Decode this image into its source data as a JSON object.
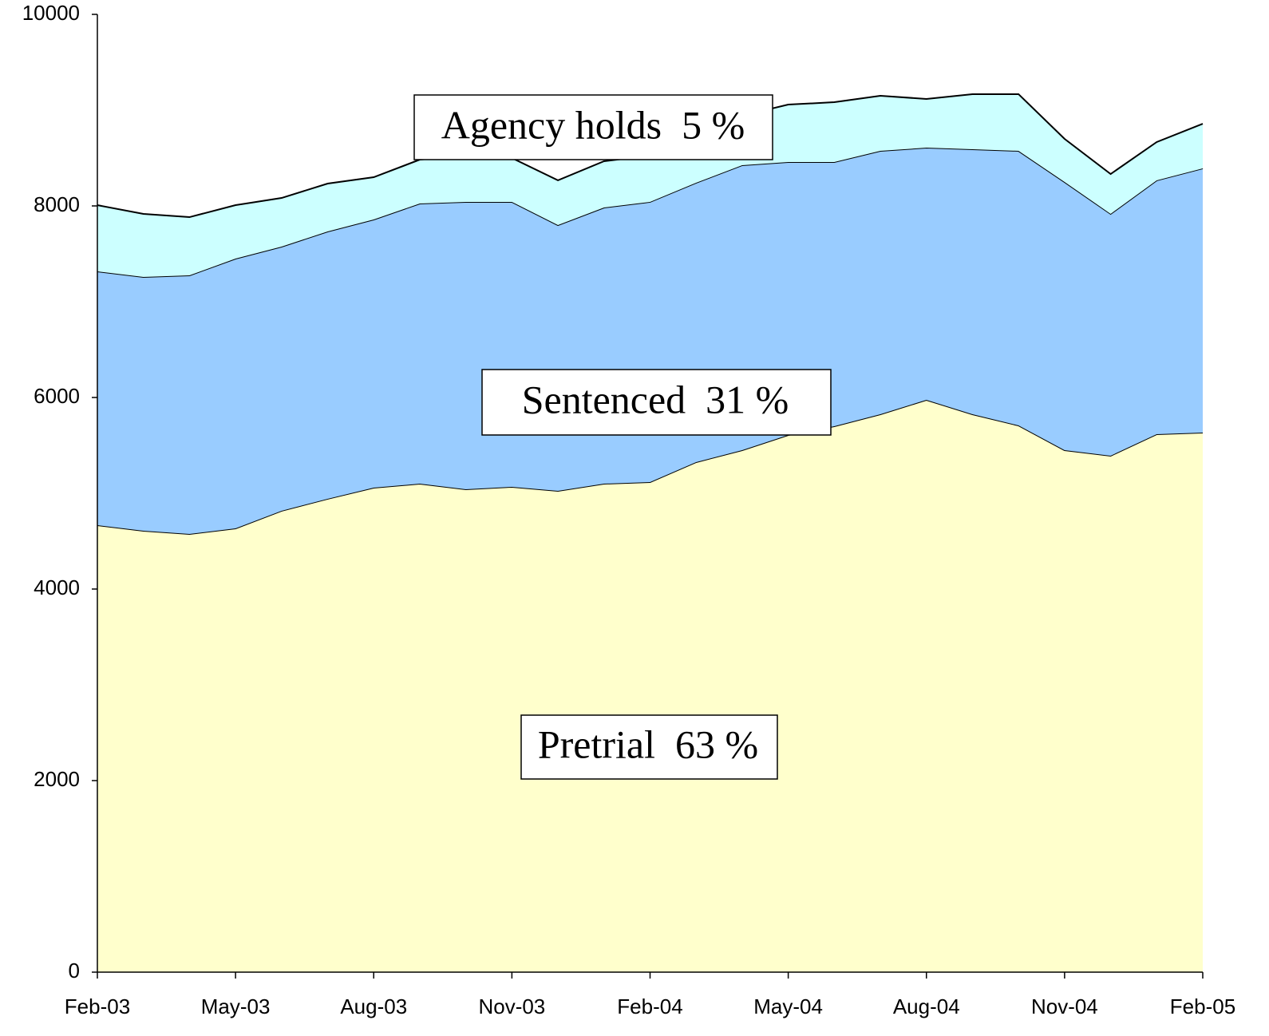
{
  "chart_data": {
    "type": "stacked_area",
    "categories": [
      "Feb-03",
      null,
      null,
      "May-03",
      null,
      null,
      "Aug-03",
      null,
      null,
      "Nov-03",
      null,
      null,
      "Feb-04",
      null,
      null,
      "May-04",
      null,
      null,
      "Aug-04",
      null,
      null,
      "Nov-04",
      null,
      null,
      "Feb-05"
    ],
    "series": [
      {
        "color": "#ffffcc",
        "values": [
          4667,
          4608,
          4575,
          4633,
          4817,
          4942,
          5058,
          5100,
          5042,
          5067,
          5025,
          5100,
          5117,
          5325,
          5450,
          5608,
          5700,
          5825,
          5975,
          5825,
          5708,
          5450,
          5392,
          5617,
          5633
        ]
      },
      {
        "color": "#99ccff",
        "values": [
          2650,
          2650,
          2700,
          2817,
          2758,
          2791,
          2800,
          2925,
          3000,
          2975,
          2775,
          2883,
          2925,
          2917,
          2975,
          2850,
          2758,
          2750,
          2633,
          2767,
          2867,
          2800,
          2525,
          2650,
          2759
        ]
      },
      {
        "color": "#ccffff",
        "values": [
          691,
          659,
          608,
          558,
          508,
          500,
          442,
          458,
          483,
          458,
          467,
          484,
          483,
          408,
          517,
          600,
          625,
          575,
          509,
          575,
          592,
          450,
          416,
          400,
          466
        ]
      }
    ],
    "annotations": [
      "Agency holds  5 %",
      "Sentenced  31 %",
      "Pretrial  63 %"
    ],
    "ylim": [
      0,
      10000
    ],
    "yticks": [
      0,
      2000,
      4000,
      6000,
      8000,
      10000
    ]
  }
}
